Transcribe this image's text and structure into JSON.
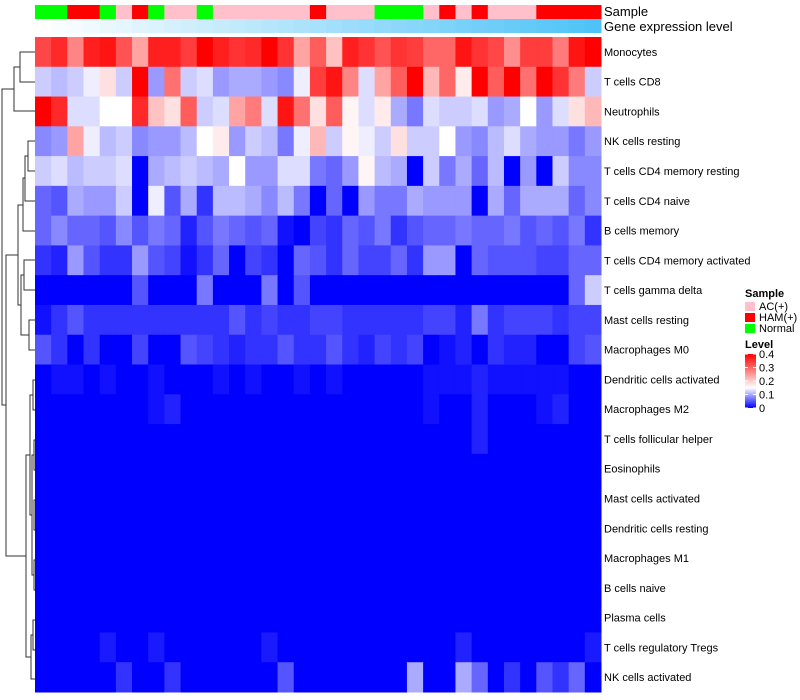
{
  "chart_data": {
    "type": "heatmap",
    "annotation_labels": {
      "sample": "Sample",
      "gene": "Gene expression level"
    },
    "sample_legend": {
      "title": "Sample",
      "entries": [
        {
          "label": "AC(+)",
          "color": "#FFC0CB"
        },
        {
          "label": "HAM(+)",
          "color": "#FF0000"
        },
        {
          "label": "Normal",
          "color": "#00FF00"
        }
      ]
    },
    "level_legend": {
      "title": "Level",
      "ticks": [
        "0.4",
        "0.3",
        "0.2",
        "0.1",
        "0"
      ],
      "range": [
        0,
        0.4
      ],
      "low_color": "#0000FF",
      "mid_color": "#FFFFFF",
      "high_color": "#FF0000",
      "mid_value": 0.15
    },
    "gene_color_low": "#FFFFFF",
    "gene_color_high": "#4FC3F7",
    "samples": [
      "Normal",
      "Normal",
      "HAM(+)",
      "HAM(+)",
      "Normal",
      "AC(+)",
      "HAM(+)",
      "Normal",
      "AC(+)",
      "AC(+)",
      "Normal",
      "AC(+)",
      "AC(+)",
      "AC(+)",
      "AC(+)",
      "AC(+)",
      "AC(+)",
      "HAM(+)",
      "AC(+)",
      "AC(+)",
      "AC(+)",
      "Normal",
      "Normal",
      "Normal",
      "AC(+)",
      "HAM(+)",
      "AC(+)",
      "HAM(+)",
      "AC(+)",
      "AC(+)",
      "AC(+)",
      "HAM(+)",
      "HAM(+)",
      "HAM(+)",
      "HAM(+)"
    ],
    "rows": [
      "Monocytes",
      "T cells CD8",
      "Neutrophils",
      "NK cells resting",
      "T cells CD4 memory resting",
      "T cells CD4 naive",
      "B cells memory",
      "T cells CD4 memory activated",
      "T cells gamma delta",
      "Mast cells resting",
      "Macrophages M0",
      "Dendritic cells activated",
      "Macrophages M2",
      "T cells follicular helper",
      "Eosinophils",
      "Mast cells activated",
      "Dendritic cells resting",
      "Macrophages M1",
      "B cells naive",
      "Plasma cells",
      "T cells regulatory  Tregs",
      "NK cells activated"
    ],
    "values": [
      [
        0.33,
        0.36,
        0.27,
        0.37,
        0.38,
        0.32,
        0.24,
        0.37,
        0.37,
        0.34,
        0.4,
        0.37,
        0.35,
        0.36,
        0.4,
        0.35,
        0.24,
        0.31,
        0.21,
        0.37,
        0.35,
        0.32,
        0.35,
        0.34,
        0.3,
        0.3,
        0.38,
        0.35,
        0.33,
        0.26,
        0.34,
        0.34,
        0.28,
        0.38,
        0.4
      ],
      [
        0.12,
        0.11,
        0.12,
        0.14,
        0.18,
        0.12,
        0.4,
        0.09,
        0.29,
        0.12,
        0.13,
        0.09,
        0.1,
        0.1,
        0.09,
        0.08,
        0.14,
        0.34,
        0.38,
        0.27,
        0.13,
        0.24,
        0.31,
        0.4,
        0.22,
        0.3,
        0.17,
        0.4,
        0.31,
        0.4,
        0.29,
        0.4,
        0.35,
        0.28,
        0.12
      ],
      [
        0.4,
        0.36,
        0.13,
        0.13,
        0.15,
        0.15,
        0.36,
        0.21,
        0.18,
        0.31,
        0.12,
        0.13,
        0.24,
        0.28,
        0.13,
        0.38,
        0.29,
        0.18,
        0.31,
        0.16,
        0.13,
        0.17,
        0.1,
        0.07,
        0.13,
        0.12,
        0.12,
        0.13,
        0.09,
        0.1,
        0.15,
        0.09,
        0.13,
        0.18,
        0.22
      ],
      [
        0.08,
        0.09,
        0.24,
        0.14,
        0.11,
        0.12,
        0.08,
        0.09,
        0.09,
        0.11,
        0.15,
        0.17,
        0.09,
        0.12,
        0.11,
        0.07,
        0.14,
        0.22,
        0.12,
        0.16,
        0.14,
        0.12,
        0.18,
        0.12,
        0.12,
        0.15,
        0.09,
        0.08,
        0.11,
        0.13,
        0.1,
        0.09,
        0.09,
        0.07,
        0.09
      ],
      [
        0.12,
        0.13,
        0.11,
        0.12,
        0.12,
        0.13,
        0,
        0.1,
        0.11,
        0.12,
        0.11,
        0.1,
        0.15,
        0.09,
        0.09,
        0.13,
        0.13,
        0.07,
        0.06,
        0.09,
        0.16,
        0.11,
        0.1,
        0,
        0.12,
        0.07,
        0.1,
        0.06,
        0.11,
        0,
        0.09,
        0,
        0.12,
        0.08,
        0.08
      ],
      [
        0.06,
        0.05,
        0.1,
        0.09,
        0.09,
        0.12,
        0,
        0.14,
        0.05,
        0.1,
        0.03,
        0.11,
        0.11,
        0.1,
        0.08,
        0.11,
        0.07,
        0,
        0.06,
        0,
        0.09,
        0.07,
        0.07,
        0.1,
        0.09,
        0.09,
        0.09,
        0,
        0.1,
        0.06,
        0.1,
        0.1,
        0.1,
        0.06,
        0.08
      ],
      [
        0.06,
        0.08,
        0.06,
        0.06,
        0.05,
        0.08,
        0.05,
        0.07,
        0.06,
        0.02,
        0.05,
        0.07,
        0.06,
        0.05,
        0.06,
        0.01,
        0,
        0.04,
        0.03,
        0.06,
        0.05,
        0.07,
        0.03,
        0.05,
        0.06,
        0.06,
        0.07,
        0.06,
        0.06,
        0.07,
        0.05,
        0.06,
        0.05,
        0.07,
        0.03
      ],
      [
        0.03,
        0.02,
        0.09,
        0.05,
        0.03,
        0.03,
        0.09,
        0.05,
        0.04,
        0.01,
        0.03,
        0.06,
        0,
        0.04,
        0.03,
        0,
        0.06,
        0.05,
        0.03,
        0.06,
        0.04,
        0.04,
        0.06,
        0.03,
        0.09,
        0.09,
        0,
        0.06,
        0.05,
        0.05,
        0.05,
        0.04,
        0.04,
        0.06,
        0.06
      ],
      [
        0,
        0,
        0,
        0,
        0,
        0,
        0.05,
        0,
        0,
        0,
        0.07,
        0,
        0,
        0,
        0.07,
        0,
        0.05,
        0,
        0,
        0,
        0,
        0,
        0,
        0,
        0,
        0,
        0,
        0,
        0,
        0,
        0,
        0,
        0,
        0.06,
        0.12
      ],
      [
        0.01,
        0.03,
        0.05,
        0.03,
        0.03,
        0.03,
        0.03,
        0.03,
        0.03,
        0.03,
        0.03,
        0.03,
        0.05,
        0.03,
        0.04,
        0.03,
        0.03,
        0.04,
        0.04,
        0.03,
        0.03,
        0.03,
        0.03,
        0.03,
        0.04,
        0.04,
        0.02,
        0.07,
        0.03,
        0.04,
        0.04,
        0.04,
        0.03,
        0.04,
        0.04
      ],
      [
        0.05,
        0.03,
        0,
        0.03,
        0,
        0,
        0.04,
        0,
        0,
        0.05,
        0.04,
        0.03,
        0.02,
        0.03,
        0.03,
        0.05,
        0.03,
        0.03,
        0.05,
        0.03,
        0.02,
        0.04,
        0.03,
        0.04,
        0,
        0.01,
        0.02,
        0,
        0.03,
        0.02,
        0.02,
        0,
        0,
        0.04,
        0.05
      ],
      [
        0,
        0.01,
        0.01,
        0,
        0.01,
        0,
        0,
        0.01,
        0,
        0,
        0,
        0.01,
        0,
        0.01,
        0,
        0,
        0.01,
        0,
        0.01,
        0,
        0,
        0,
        0,
        0,
        0.01,
        0.01,
        0.01,
        0.02,
        0.01,
        0.01,
        0.01,
        0.01,
        0.01,
        0,
        0
      ],
      [
        0,
        0,
        0,
        0,
        0,
        0,
        0,
        0.01,
        0.02,
        0,
        0,
        0,
        0,
        0,
        0,
        0,
        0,
        0,
        0,
        0,
        0,
        0,
        0,
        0,
        0.01,
        0,
        0,
        0.02,
        0,
        0,
        0,
        0.01,
        0.02,
        0,
        0
      ],
      [
        0,
        0,
        0,
        0,
        0,
        0,
        0,
        0,
        0,
        0,
        0,
        0,
        0,
        0,
        0,
        0,
        0,
        0,
        0,
        0,
        0,
        0,
        0,
        0,
        0,
        0,
        0,
        0.02,
        0,
        0,
        0,
        0,
        0,
        0,
        0
      ],
      [
        0,
        0,
        0,
        0,
        0,
        0,
        0,
        0,
        0,
        0,
        0,
        0,
        0,
        0,
        0,
        0,
        0,
        0,
        0,
        0,
        0,
        0,
        0,
        0,
        0,
        0,
        0,
        0,
        0,
        0,
        0,
        0,
        0,
        0,
        0
      ],
      [
        0,
        0,
        0,
        0,
        0,
        0,
        0,
        0,
        0,
        0,
        0,
        0,
        0,
        0,
        0,
        0,
        0,
        0,
        0,
        0,
        0,
        0,
        0,
        0,
        0,
        0,
        0,
        0,
        0,
        0,
        0,
        0,
        0,
        0,
        0
      ],
      [
        0,
        0,
        0,
        0,
        0,
        0,
        0,
        0,
        0,
        0,
        0,
        0,
        0,
        0,
        0,
        0,
        0,
        0,
        0,
        0,
        0,
        0,
        0,
        0,
        0,
        0,
        0,
        0,
        0,
        0,
        0,
        0,
        0,
        0,
        0
      ],
      [
        0,
        0,
        0,
        0,
        0,
        0,
        0,
        0,
        0,
        0,
        0,
        0,
        0,
        0,
        0,
        0,
        0,
        0,
        0,
        0,
        0,
        0,
        0,
        0,
        0,
        0,
        0,
        0,
        0,
        0,
        0,
        0,
        0,
        0,
        0
      ],
      [
        0,
        0,
        0,
        0,
        0,
        0,
        0,
        0,
        0,
        0,
        0,
        0,
        0,
        0,
        0,
        0,
        0,
        0,
        0,
        0,
        0,
        0,
        0,
        0,
        0,
        0,
        0,
        0,
        0,
        0,
        0,
        0,
        0,
        0,
        0
      ],
      [
        0,
        0,
        0,
        0,
        0,
        0,
        0,
        0,
        0,
        0,
        0,
        0,
        0,
        0,
        0,
        0,
        0,
        0,
        0,
        0,
        0,
        0,
        0,
        0,
        0,
        0,
        0,
        0,
        0,
        0,
        0,
        0,
        0,
        0,
        0
      ],
      [
        0,
        0,
        0,
        0,
        0.015,
        0,
        0,
        0.015,
        0,
        0,
        0,
        0,
        0,
        0,
        0.015,
        0,
        0,
        0,
        0,
        0,
        0,
        0,
        0,
        0,
        0,
        0,
        0.02,
        0,
        0,
        0,
        0,
        0,
        0,
        0,
        0.015
      ],
      [
        0,
        0,
        0,
        0,
        0,
        0.03,
        0,
        0,
        0.03,
        0,
        0,
        0,
        0,
        0,
        0,
        0.05,
        0,
        0,
        0,
        0,
        0,
        0,
        0,
        0.1,
        0,
        0,
        0.1,
        0.06,
        0,
        0.03,
        0,
        0.05,
        0.03,
        0.06,
        0
      ]
    ]
  }
}
